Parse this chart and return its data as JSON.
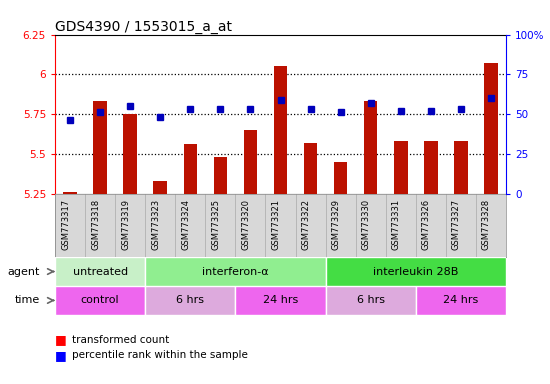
{
  "title": "GDS4390 / 1553015_a_at",
  "samples": [
    "GSM773317",
    "GSM773318",
    "GSM773319",
    "GSM773323",
    "GSM773324",
    "GSM773325",
    "GSM773320",
    "GSM773321",
    "GSM773322",
    "GSM773329",
    "GSM773330",
    "GSM773331",
    "GSM773326",
    "GSM773327",
    "GSM773328"
  ],
  "red_values": [
    5.26,
    5.83,
    5.75,
    5.33,
    5.56,
    5.48,
    5.65,
    6.05,
    5.57,
    5.45,
    5.83,
    5.58,
    5.58,
    5.58,
    6.07
  ],
  "blue_values": [
    46,
    51,
    55,
    48,
    53,
    53,
    53,
    59,
    53,
    51,
    57,
    52,
    52,
    53,
    60
  ],
  "ylim_left": [
    5.25,
    6.25
  ],
  "ylim_right": [
    0,
    100
  ],
  "yticks_left": [
    5.25,
    5.5,
    5.75,
    6.0,
    6.25
  ],
  "yticks_right": [
    0,
    25,
    50,
    75,
    100
  ],
  "ytick_labels_left": [
    "5.25",
    "5.5",
    "5.75",
    "6",
    "6.25"
  ],
  "ytick_labels_right": [
    "0",
    "25",
    "50",
    "75",
    "100%"
  ],
  "hlines": [
    5.5,
    5.75,
    6.0
  ],
  "agent_groups": [
    {
      "label": "untreated",
      "start": 0,
      "end": 3,
      "color": "#c8f0c8"
    },
    {
      "label": "interferon-α",
      "start": 3,
      "end": 9,
      "color": "#90ee90"
    },
    {
      "label": "interleukin 28B",
      "start": 9,
      "end": 15,
      "color": "#44dd44"
    }
  ],
  "time_groups": [
    {
      "label": "control",
      "start": 0,
      "end": 3,
      "color": "#ee66ee"
    },
    {
      "label": "6 hrs",
      "start": 3,
      "end": 6,
      "color": "#ddaadd"
    },
    {
      "label": "24 hrs",
      "start": 6,
      "end": 9,
      "color": "#ee66ee"
    },
    {
      "label": "6 hrs",
      "start": 9,
      "end": 12,
      "color": "#ddaadd"
    },
    {
      "label": "24 hrs",
      "start": 12,
      "end": 15,
      "color": "#ee66ee"
    }
  ],
  "bar_color": "#bb1100",
  "dot_color": "#0000bb",
  "bar_width": 0.45,
  "plot_bg": "#ffffff",
  "label_fontsize": 7,
  "title_fontsize": 10,
  "xlabel_area_color": "#d8d8d8",
  "agent_label": "agent",
  "time_label": "time"
}
